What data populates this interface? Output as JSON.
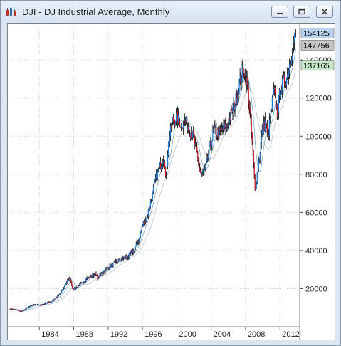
{
  "window": {
    "title": "DJI - DJ Industrial Average, Monthly",
    "buttons": {
      "minimize": "minimize",
      "maximize": "maximize",
      "close": "close"
    }
  },
  "chart_data": {
    "type": "candlestick",
    "title": "DJI - DJ Industrial Average, Monthly",
    "x_tick_labels": [
      "1984",
      "1988",
      "1992",
      "1996",
      "2000",
      "2004",
      "2008",
      "2012"
    ],
    "y_tick_labels": [
      "20000",
      "40000",
      "60000",
      "80000",
      "100000",
      "120000",
      "140000"
    ],
    "ylim": [
      0,
      158000
    ],
    "xlim": [
      1980.5,
      2014.3
    ],
    "grid": true,
    "colors": {
      "up": "#1a7fe0",
      "down": "#cc1020",
      "wick": "#000000",
      "ma_fast": "#7aa7c7",
      "ma_slow": "#b8c4cc",
      "grid": "#d0d0d0"
    },
    "price_tags": [
      {
        "value": 154125,
        "label": "154125",
        "background": "#b8d3f0",
        "text_color": "#000000"
      },
      {
        "value": 147756,
        "label": "147756",
        "background": "#c6c6c6",
        "text_color": "#000000"
      },
      {
        "value": 137165,
        "label": "137165",
        "background": "#c8e6c8",
        "text_color": "#000000"
      }
    ],
    "series": [
      {
        "x": [
          1980.6,
          1981.5,
          1982.0,
          1982.8,
          1983.5,
          1984.0,
          1984.8,
          1985.5,
          1986.5,
          1987.3,
          1987.6,
          1987.9,
          1988.5,
          1989.5,
          1990.5,
          1990.8,
          1991.5,
          1992.5,
          1993.5,
          1994.5,
          1995.0,
          1995.5,
          1996.0,
          1996.5,
          1997.0,
          1997.5,
          1998.0,
          1998.5,
          1998.7,
          1999.0,
          1999.5,
          2000.0,
          2000.5,
          2001.0,
          2001.5,
          2002.0,
          2002.5,
          2002.8,
          2003.3,
          2003.8,
          2004.3,
          2004.8,
          2005.3,
          2005.8,
          2006.3,
          2006.8,
          2007.3,
          2007.8,
          2008.3,
          2008.8,
          2009.1,
          2009.5,
          2009.9,
          2010.3,
          2010.6,
          2010.9,
          2011.3,
          2011.7,
          2012.0,
          2012.4,
          2012.8,
          2013.2,
          2013.6,
          2013.9
        ],
        "close": [
          9500,
          8500,
          8000,
          10500,
          11800,
          11200,
          12500,
          13500,
          17500,
          24500,
          25500,
          19500,
          21000,
          25500,
          27500,
          25500,
          29500,
          32500,
          35500,
          37500,
          40000,
          45000,
          53000,
          58000,
          66000,
          77000,
          84000,
          90000,
          76000,
          96000,
          108000,
          110000,
          106000,
          108000,
          103000,
          99000,
          86000,
          80000,
          82000,
          93000,
          103000,
          101000,
          103500,
          105000,
          112000,
          118000,
          128000,
          136000,
          123000,
          95000,
          71000,
          86000,
          101000,
          108000,
          99000,
          111000,
          124000,
          112000,
          124000,
          128000,
          131000,
          140000,
          150000,
          154125
        ],
        "name": ""
      }
    ]
  }
}
